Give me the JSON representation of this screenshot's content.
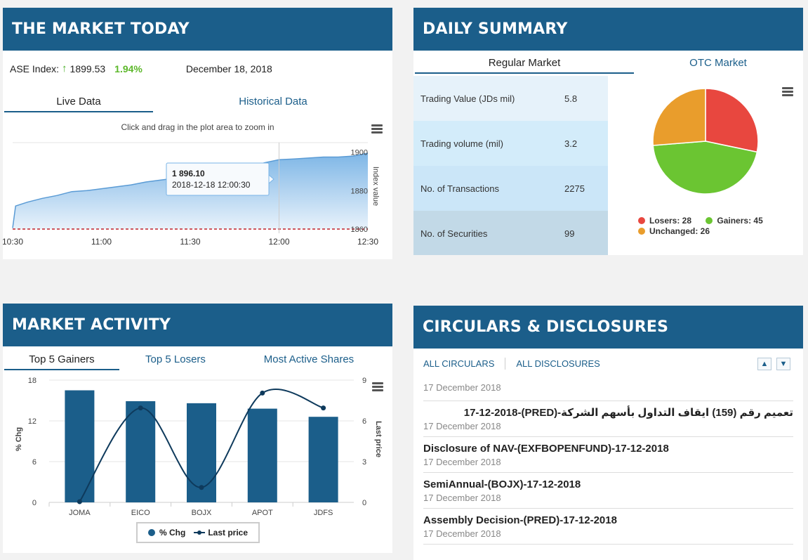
{
  "market_today": {
    "title": "THE MARKET TODAY",
    "index_label": "ASE Index:",
    "index_value": "1899.53",
    "index_change": "1.94%",
    "date": "December 18, 2018",
    "tabs": [
      "Live Data",
      "Historical Data"
    ],
    "chart_note": "Click and drag in the plot area to zoom in",
    "tooltip_value": "1 896.10",
    "tooltip_time": "2018-12-18 12:00:30",
    "y_axis_title": "Index value",
    "x_ticks": [
      "10:30",
      "11:00",
      "11:30",
      "12:00",
      "12:30"
    ],
    "y_ticks": [
      "1900",
      "1880",
      "1860"
    ]
  },
  "daily_summary": {
    "title": "DAILY SUMMARY",
    "tabs": [
      "Regular Market",
      "OTC Market"
    ],
    "rows": [
      {
        "label": "Trading Value (JDs mil)",
        "value": "5.8"
      },
      {
        "label": "Trading volume (mil)",
        "value": "3.2"
      },
      {
        "label": "No. of Transactions",
        "value": "2275"
      },
      {
        "label": "No. of Securities",
        "value": "99"
      }
    ],
    "legend": {
      "losers": "Losers: 28",
      "gainers": "Gainers: 45",
      "unchanged": "Unchanged: 26"
    }
  },
  "market_activity": {
    "title": "MARKET ACTIVITY",
    "tabs": [
      "Top 5 Gainers",
      "Top 5 Losers",
      "Most Active Shares"
    ],
    "left_axis_title": "% Chg",
    "right_axis_title": "Last price",
    "legend_bar": "% Chg",
    "legend_line": "Last price"
  },
  "circulars": {
    "title": "CIRCULARS & DISCLOSURES",
    "link_all_circulars": "ALL CIRCULARS",
    "link_all_disclosures": "ALL DISCLOSURES",
    "partial_date_top": "17 December 2018",
    "items": [
      {
        "title": "تعميم رقم (159) ايقاف التداول بأسهم الشركة-(PRED)-17-12-2018",
        "date": "17 December 2018"
      },
      {
        "title": "Disclosure of NAV-(EXFBOPENFUND)-17-12-2018",
        "date": "17 December 2018"
      },
      {
        "title": "SemiAnnual-(BOJX)-17-12-2018",
        "date": "17 December 2018"
      },
      {
        "title": "Assembly Decision-(PRED)-17-12-2018",
        "date": "17 December 2018"
      }
    ]
  },
  "chart_data": [
    {
      "type": "area",
      "x_ticks": [
        "10:30",
        "11:00",
        "11:30",
        "12:00",
        "12:30"
      ],
      "ylabel": "Index value",
      "ylim": [
        1860,
        1905
      ],
      "reference_line": 1860,
      "points": [
        [
          "10:30",
          1860.5
        ],
        [
          "10:31",
          1872
        ],
        [
          "10:35",
          1874
        ],
        [
          "10:40",
          1876
        ],
        [
          "10:45",
          1877.5
        ],
        [
          "10:50",
          1879.5
        ],
        [
          "10:55",
          1880
        ],
        [
          "11:00",
          1881
        ],
        [
          "11:05",
          1882
        ],
        [
          "11:10",
          1883
        ],
        [
          "11:15",
          1884.5
        ],
        [
          "11:20",
          1885.5
        ],
        [
          "11:25",
          1886.5
        ],
        [
          "11:30",
          1887.5
        ],
        [
          "11:35",
          1888.5
        ],
        [
          "11:40",
          1889
        ],
        [
          "11:45",
          1890.5
        ],
        [
          "11:50",
          1892
        ],
        [
          "11:55",
          1894.5
        ],
        [
          "12:00",
          1896.1
        ],
        [
          "12:05",
          1896.5
        ],
        [
          "12:10",
          1897
        ],
        [
          "12:15",
          1897.5
        ],
        [
          "12:20",
          1897.5
        ],
        [
          "12:25",
          1898
        ],
        [
          "12:30",
          1899.5
        ]
      ]
    },
    {
      "type": "pie",
      "slices": [
        {
          "name": "Losers",
          "value": 28,
          "color": "#e8473f"
        },
        {
          "name": "Gainers",
          "value": 45,
          "color": "#6bc532"
        },
        {
          "name": "Unchanged",
          "value": 26,
          "color": "#e99d2c"
        }
      ]
    },
    {
      "type": "bar",
      "categories": [
        "JOMA",
        "EICO",
        "BOJX",
        "APOT",
        "JDFS"
      ],
      "series": [
        {
          "name": "% Chg",
          "type": "bar",
          "axis": "left",
          "values": [
            16.5,
            14.9,
            14.6,
            13.8,
            12.6
          ],
          "color": "#1b5e8a"
        },
        {
          "name": "Last price",
          "type": "line",
          "axis": "right",
          "values": [
            0.05,
            6.95,
            1.1,
            8.05,
            6.95
          ],
          "color": "#0e3a5c"
        }
      ],
      "left_ticks": [
        0,
        6,
        12,
        18
      ],
      "right_ticks": [
        0,
        3,
        6,
        9
      ],
      "ylim_left": [
        0,
        18
      ],
      "ylim_right": [
        0,
        9
      ]
    }
  ]
}
